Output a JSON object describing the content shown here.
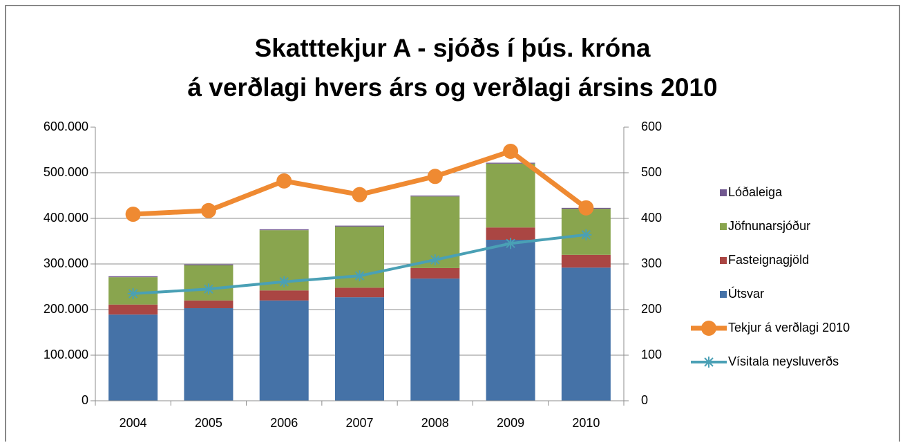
{
  "chart_data": {
    "type": "bar_line",
    "title": [
      "Skatttekjur A - sjóðs í þús. króna",
      "á verðlagi hvers árs og verðlagi ársins 2010"
    ],
    "categories": [
      "2004",
      "2005",
      "2006",
      "2007",
      "2008",
      "2009",
      "2010"
    ],
    "series": [
      {
        "name": "Útsvar",
        "color": "#4572a7",
        "type": "bar",
        "values": [
          189000,
          203000,
          220000,
          227000,
          268000,
          353000,
          292000
        ]
      },
      {
        "name": "Fasteignagjöld",
        "color": "#aa4643",
        "type": "bar",
        "values": [
          22000,
          17000,
          22000,
          21000,
          23000,
          27000,
          28000
        ]
      },
      {
        "name": "Jöfnunarsjóður",
        "color": "#89a54e",
        "type": "bar",
        "values": [
          60000,
          77000,
          132000,
          134000,
          157000,
          140000,
          101000
        ]
      },
      {
        "name": "Lóðaleiga",
        "color": "#71588f",
        "type": "bar",
        "values": [
          2000,
          2000,
          2000,
          2000,
          2000,
          2000,
          2000
        ]
      },
      {
        "name": "Tekjur á verðlagi 2010",
        "color": "#ef8a32",
        "type": "line",
        "marker": "circle",
        "axis": "y2",
        "values": [
          409,
          417,
          482,
          452,
          492,
          547,
          423
        ]
      },
      {
        "name": "Vísitala neysluverðs",
        "color": "#4aa0b5",
        "type": "line",
        "marker": "star",
        "axis": "y2",
        "values": [
          235,
          245,
          261,
          274,
          309,
          345,
          364
        ]
      }
    ],
    "stacked": true,
    "ylim": [
      0,
      600000
    ],
    "yticks": [
      0,
      {
        "value": 100000,
        "label": "100.000"
      },
      {
        "value": 200000,
        "label": "200.000"
      },
      {
        "value": 300000,
        "label": "300.000"
      },
      {
        "value": 400000,
        "label": "400.000"
      },
      {
        "value": 500000,
        "label": "500.000"
      },
      {
        "value": 600000,
        "label": "600.000"
      }
    ],
    "y2lim": [
      0,
      600
    ],
    "y2ticks": [
      0,
      100,
      200,
      300,
      400,
      500,
      600
    ],
    "grid": true,
    "legend": "right"
  }
}
